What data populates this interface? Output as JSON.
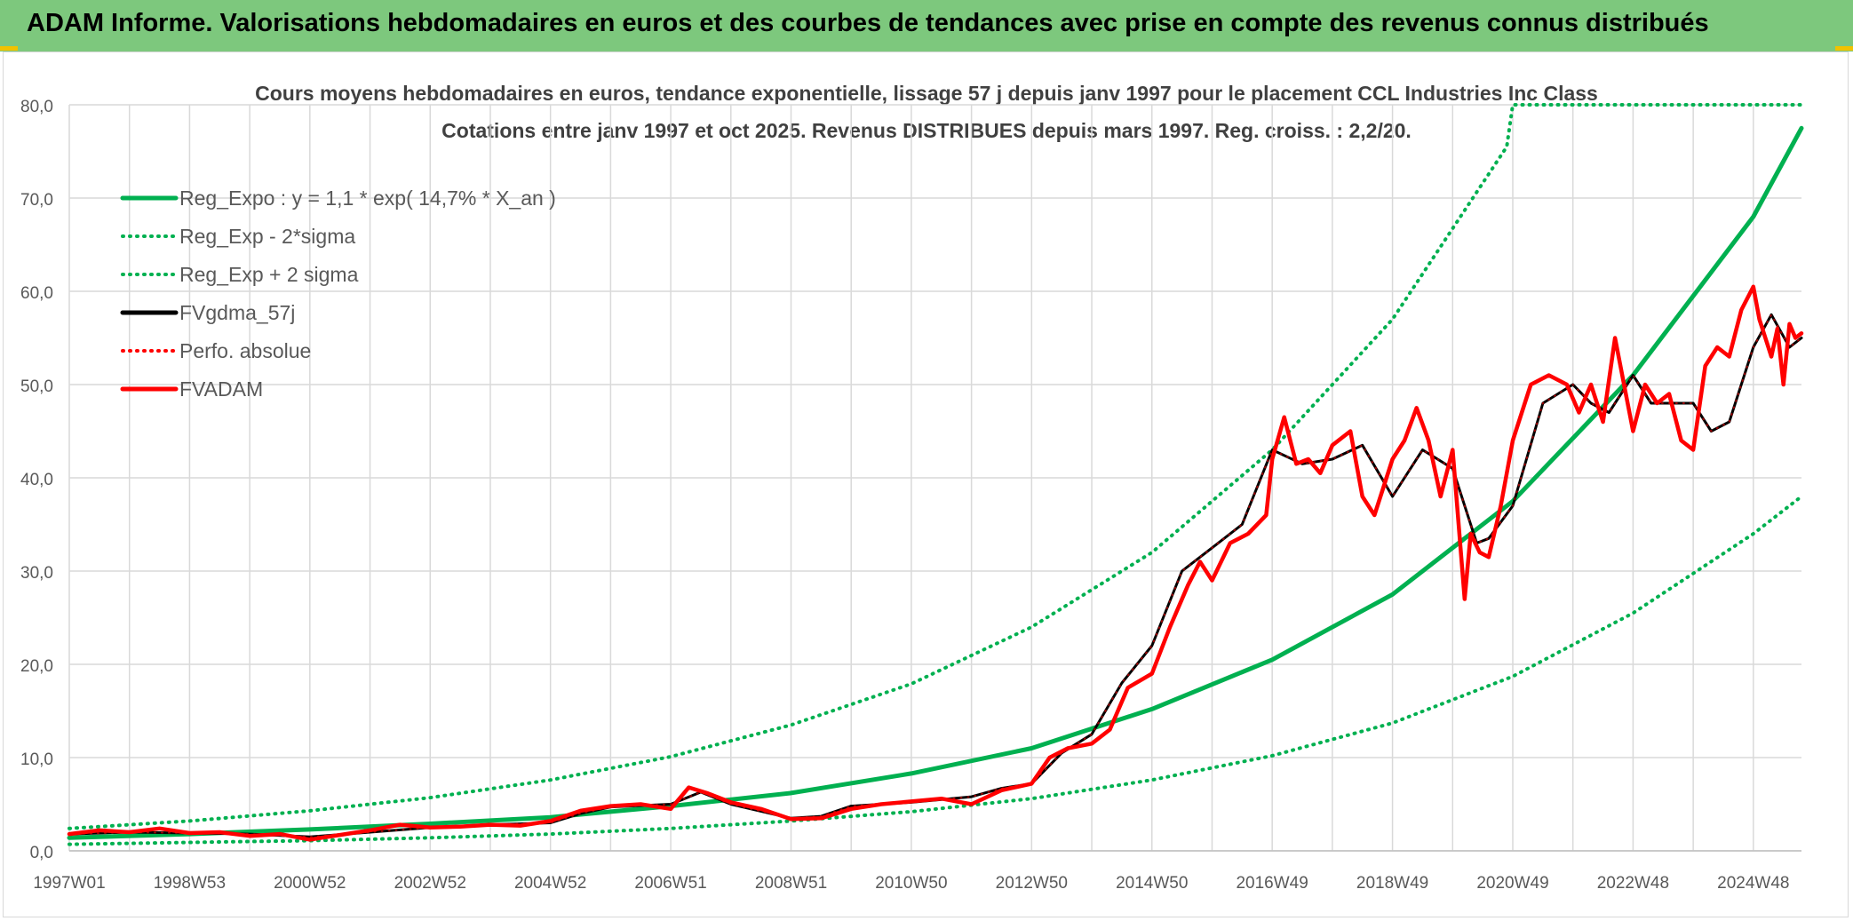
{
  "header": {
    "title": "ADAM Informe. Valorisations hebdomadaires en euros et des courbes de tendances avec prise en compte des revenus connus distribués"
  },
  "colors": {
    "banner": "#7dc87d",
    "green": "#00b050",
    "red": "#ff0000",
    "black": "#000000",
    "grid": "#d9d9d9"
  },
  "chart_data": {
    "type": "line",
    "title": "Cours moyens hebdomadaires en euros, tendance exponentielle, lissage 57 j depuis janv 1997 pour le placement CCL Industries Inc Class",
    "subtitle": "Cotations entre janv 1997 et oct 2025. Revenus DISTRIBUES depuis mars 1997. Reg. croiss. : 2,2/20.",
    "xlabel": "",
    "ylabel": "",
    "xlim": [
      1997.0,
      2025.8
    ],
    "ylim": [
      0,
      80
    ],
    "yticks": [
      "0,0",
      "10,0",
      "20,0",
      "30,0",
      "40,0",
      "50,0",
      "60,0",
      "70,0",
      "80,0"
    ],
    "xticks": [
      {
        "label": "1997W01",
        "x": 1997.0
      },
      {
        "label": "1998W53",
        "x": 1999.0
      },
      {
        "label": "2000W52",
        "x": 2001.0
      },
      {
        "label": "2002W52",
        "x": 2003.0
      },
      {
        "label": "2004W52",
        "x": 2005.0
      },
      {
        "label": "2006W51",
        "x": 2007.0
      },
      {
        "label": "2008W51",
        "x": 2009.0
      },
      {
        "label": "2010W50",
        "x": 2011.0
      },
      {
        "label": "2012W50",
        "x": 2013.0
      },
      {
        "label": "2014W50",
        "x": 2015.0
      },
      {
        "label": "2016W49",
        "x": 2017.0
      },
      {
        "label": "2018W49",
        "x": 2019.0
      },
      {
        "label": "2020W49",
        "x": 2021.0
      },
      {
        "label": "2022W48",
        "x": 2023.0
      },
      {
        "label": "2024W48",
        "x": 2025.0
      }
    ],
    "legend_position": "top-left",
    "series": [
      {
        "name": "Reg_Expo : y = 1,1 * exp( 14,7% *  X_an )",
        "style": "solid",
        "color": "#00b050",
        "x": [
          1997.0,
          1999.0,
          2001.0,
          2003.0,
          2005.0,
          2007.0,
          2009.0,
          2011.0,
          2013.0,
          2015.0,
          2017.0,
          2019.0,
          2021.0,
          2023.0,
          2025.0,
          2025.8
        ],
        "y": [
          1.4,
          1.8,
          2.3,
          2.9,
          3.6,
          4.8,
          6.2,
          8.3,
          11.0,
          15.2,
          20.5,
          27.5,
          37.5,
          51.0,
          68.0,
          77.5
        ]
      },
      {
        "name": "Reg_Exp - 2*sigma",
        "style": "dotted",
        "color": "#00b050",
        "x": [
          1997.0,
          1999.0,
          2001.0,
          2003.0,
          2005.0,
          2007.0,
          2009.0,
          2011.0,
          2013.0,
          2015.0,
          2017.0,
          2019.0,
          2021.0,
          2023.0,
          2025.0,
          2025.8
        ],
        "y": [
          0.7,
          0.9,
          1.1,
          1.4,
          1.8,
          2.4,
          3.2,
          4.2,
          5.6,
          7.6,
          10.2,
          13.7,
          18.7,
          25.5,
          34.0,
          38.0
        ]
      },
      {
        "name": "Reg_Exp + 2 sigma",
        "style": "dotted",
        "color": "#00b050",
        "x": [
          1997.0,
          1999.0,
          2001.0,
          2003.0,
          2005.0,
          2007.0,
          2009.0,
          2011.0,
          2013.0,
          2015.0,
          2017.0,
          2019.0,
          2020.9,
          2021.0,
          2025.8
        ],
        "y": [
          2.4,
          3.2,
          4.3,
          5.7,
          7.6,
          10.1,
          13.5,
          17.9,
          24.0,
          32.0,
          43.0,
          57.0,
          75.5,
          80.0,
          80.0
        ]
      },
      {
        "name": "FVgdma_57j",
        "style": "solid",
        "color": "#000000",
        "x": [
          1997.0,
          1998.0,
          1999.0,
          2000.0,
          2001.0,
          2002.0,
          2003.0,
          2004.0,
          2005.0,
          2005.5,
          2006.0,
          2007.0,
          2007.5,
          2008.0,
          2009.0,
          2009.5,
          2010.0,
          2010.5,
          2011.0,
          2011.5,
          2012.0,
          2012.5,
          2013.0,
          2013.5,
          2014.0,
          2014.5,
          2015.0,
          2015.5,
          2016.0,
          2016.5,
          2017.0,
          2017.5,
          2018.0,
          2018.5,
          2019.0,
          2019.5,
          2020.0,
          2020.4,
          2020.6,
          2021.0,
          2021.5,
          2022.0,
          2022.3,
          2022.6,
          2023.0,
          2023.3,
          2023.6,
          2024.0,
          2024.3,
          2024.6,
          2025.0,
          2025.3,
          2025.6,
          2025.8
        ],
        "y": [
          1.8,
          2.0,
          1.9,
          1.8,
          1.5,
          2.0,
          2.5,
          2.8,
          3.0,
          4.0,
          4.7,
          5.0,
          6.3,
          5.0,
          3.5,
          3.7,
          4.8,
          5.0,
          5.2,
          5.5,
          5.8,
          6.7,
          7.2,
          10.5,
          12.5,
          18.0,
          22.0,
          30.0,
          32.5,
          35.0,
          43.0,
          41.5,
          42.0,
          43.5,
          38.0,
          43.0,
          41.0,
          33.0,
          33.5,
          37.0,
          48.0,
          50.0,
          48.0,
          47.0,
          51.0,
          48.0,
          48.0,
          48.0,
          45.0,
          46.0,
          54.0,
          57.5,
          54.0,
          55.0
        ]
      },
      {
        "name": "Perfo. absolue",
        "style": "dotted",
        "color": "#ff0000",
        "x": [
          1997.0,
          1998.0,
          1999.0,
          2000.0,
          2001.0,
          2002.0,
          2003.0,
          2004.0,
          2005.0,
          2005.5,
          2006.0,
          2007.0,
          2007.5,
          2008.0,
          2009.0,
          2009.5,
          2010.0,
          2010.5,
          2011.0,
          2011.5,
          2012.0,
          2012.5,
          2013.0,
          2013.5,
          2014.0,
          2014.5,
          2015.0,
          2015.5,
          2016.0,
          2016.5,
          2017.0,
          2017.5,
          2018.0,
          2018.5,
          2019.0,
          2019.5,
          2020.0,
          2020.4,
          2020.6,
          2021.0,
          2021.5,
          2022.0,
          2022.3,
          2022.6,
          2023.0,
          2023.3,
          2023.6,
          2024.0,
          2024.3,
          2024.6,
          2025.0,
          2025.3,
          2025.6,
          2025.8
        ],
        "y": [
          1.8,
          2.0,
          1.9,
          1.8,
          1.5,
          2.0,
          2.5,
          2.8,
          3.0,
          4.0,
          4.7,
          5.0,
          6.3,
          5.0,
          3.5,
          3.7,
          4.8,
          5.0,
          5.2,
          5.5,
          5.8,
          6.7,
          7.2,
          10.5,
          12.5,
          18.0,
          22.0,
          30.0,
          32.5,
          35.0,
          43.0,
          41.5,
          42.0,
          43.5,
          38.0,
          43.0,
          41.0,
          33.0,
          33.5,
          37.0,
          48.0,
          50.0,
          48.0,
          47.0,
          51.0,
          48.0,
          48.0,
          48.0,
          45.0,
          46.0,
          54.0,
          57.5,
          54.0,
          55.0
        ]
      },
      {
        "name": "FVADAM",
        "style": "solid",
        "color": "#ff0000",
        "x": [
          1997.0,
          1997.5,
          1998.0,
          1998.5,
          1999.0,
          1999.5,
          2000.0,
          2000.5,
          2001.0,
          2001.5,
          2002.0,
          2002.5,
          2003.0,
          2003.5,
          2004.0,
          2004.5,
          2005.0,
          2005.5,
          2006.0,
          2006.5,
          2007.0,
          2007.3,
          2007.6,
          2008.0,
          2008.5,
          2009.0,
          2009.5,
          2010.0,
          2010.5,
          2011.0,
          2011.5,
          2012.0,
          2012.5,
          2013.0,
          2013.3,
          2013.6,
          2014.0,
          2014.3,
          2014.6,
          2015.0,
          2015.3,
          2015.6,
          2015.8,
          2016.0,
          2016.3,
          2016.6,
          2016.9,
          2017.0,
          2017.2,
          2017.4,
          2017.6,
          2017.8,
          2018.0,
          2018.3,
          2018.5,
          2018.7,
          2019.0,
          2019.2,
          2019.4,
          2019.6,
          2019.8,
          2020.0,
          2020.2,
          2020.3,
          2020.45,
          2020.6,
          2020.8,
          2021.0,
          2021.3,
          2021.6,
          2021.9,
          2022.1,
          2022.3,
          2022.5,
          2022.7,
          2023.0,
          2023.2,
          2023.4,
          2023.6,
          2023.8,
          2024.0,
          2024.2,
          2024.4,
          2024.6,
          2024.8,
          2025.0,
          2025.1,
          2025.3,
          2025.4,
          2025.5,
          2025.6,
          2025.7,
          2025.8
        ],
        "y": [
          1.8,
          2.2,
          2.0,
          2.4,
          1.9,
          2.0,
          1.6,
          1.8,
          1.2,
          1.7,
          2.2,
          2.8,
          2.5,
          2.6,
          2.8,
          2.7,
          3.2,
          4.3,
          4.8,
          5.0,
          4.5,
          6.8,
          6.2,
          5.2,
          4.5,
          3.4,
          3.5,
          4.5,
          5.0,
          5.3,
          5.6,
          5.0,
          6.5,
          7.2,
          10.0,
          11.0,
          11.5,
          13.0,
          17.5,
          19.0,
          24.0,
          28.5,
          31.0,
          29.0,
          33.0,
          34.0,
          36.0,
          42.0,
          46.5,
          41.5,
          42.0,
          40.5,
          43.5,
          45.0,
          38.0,
          36.0,
          42.0,
          44.0,
          47.5,
          44.0,
          38.0,
          43.0,
          27.0,
          34.0,
          32.0,
          31.5,
          37.0,
          44.0,
          50.0,
          51.0,
          50.0,
          47.0,
          50.0,
          46.0,
          55.0,
          45.0,
          50.0,
          48.0,
          49.0,
          44.0,
          43.0,
          52.0,
          54.0,
          53.0,
          58.0,
          60.5,
          57.0,
          53.0,
          56.0,
          50.0,
          56.5,
          55.0,
          55.5
        ]
      }
    ]
  }
}
